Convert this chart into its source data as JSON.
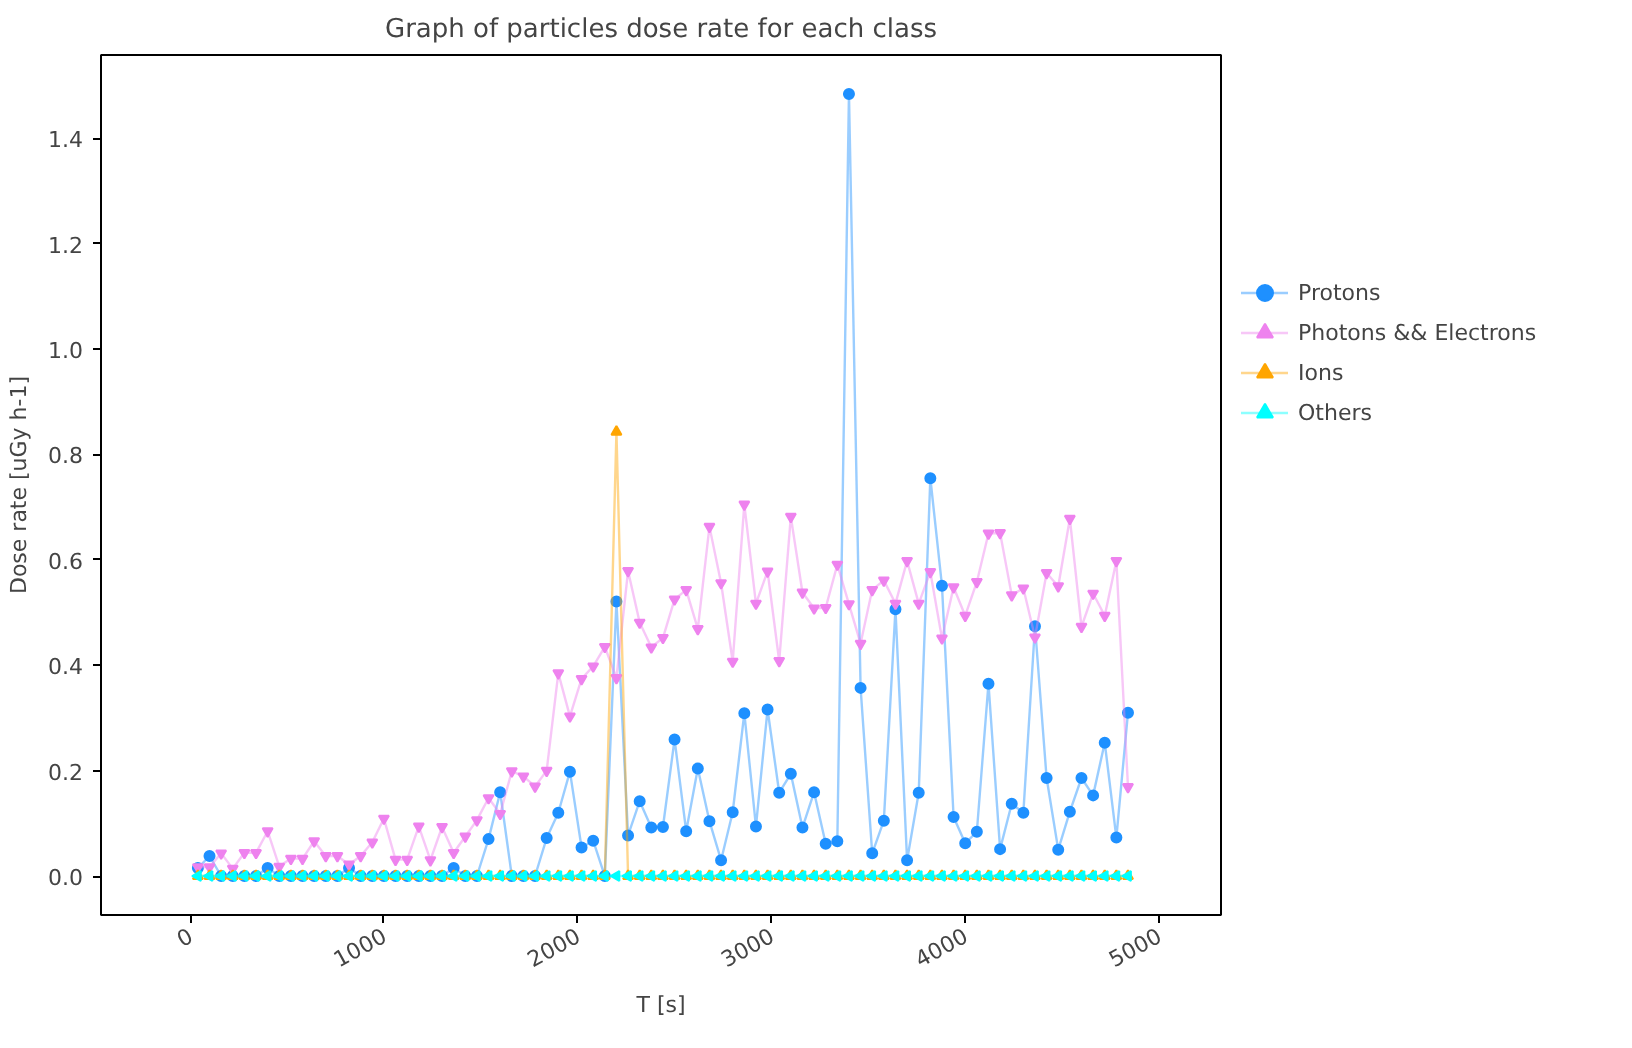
{
  "chart_data": {
    "type": "line",
    "title": "Graph of particles dose rate for each class",
    "xlabel": "T [s]",
    "ylabel": "Dose rate [uGy h-1]",
    "x": [
      40,
      100,
      160,
      220,
      280,
      340,
      400,
      460,
      520,
      580,
      640,
      700,
      760,
      820,
      880,
      940,
      1000,
      1060,
      1120,
      1180,
      1240,
      1300,
      1360,
      1420,
      1480,
      1540,
      1600,
      1660,
      1720,
      1780,
      1840,
      1900,
      1960,
      2020,
      2080,
      2140,
      2200,
      2260,
      2320,
      2380,
      2440,
      2500,
      2560,
      2620,
      2680,
      2740,
      2800,
      2860,
      2920,
      2980,
      3040,
      3100,
      3160,
      3220,
      3280,
      3340,
      3400,
      3460,
      3520,
      3580,
      3640,
      3700,
      3760,
      3820,
      3880,
      3940,
      4000,
      4060,
      4120,
      4180,
      4240,
      4300,
      4360,
      4420,
      4480,
      4540,
      4600,
      4660,
      4720,
      4780,
      4840
    ],
    "series": [
      {
        "name": "Protons",
        "color": "#1e90ff",
        "marker": "circle",
        "values": [
          0.015,
          0.038,
          0,
          0,
          0,
          0,
          0.015,
          0,
          0,
          0,
          0,
          0,
          0,
          0.015,
          0,
          0,
          0,
          0,
          0,
          0,
          0,
          0,
          0.015,
          0,
          0,
          0.07,
          0.159,
          0,
          0,
          0,
          0.072,
          0.12,
          0.198,
          0.054,
          0.067,
          0,
          0.521,
          0.077,
          0.142,
          0.092,
          0.093,
          0.259,
          0.085,
          0.204,
          0.104,
          0.03,
          0.121,
          0.309,
          0.094,
          0.316,
          0.158,
          0.194,
          0.092,
          0.159,
          0.061,
          0.066,
          1.484,
          0.357,
          0.043,
          0.105,
          0.506,
          0.03,
          0.158,
          0.755,
          0.551,
          0.112,
          0.062,
          0.084,
          0.365,
          0.051,
          0.137,
          0.12,
          0.474,
          0.186,
          0.05,
          0.122,
          0.186,
          0.153,
          0.253,
          0.073,
          0.31
        ]
      },
      {
        "name": "Photons && Electrons",
        "color": "#ee82ee",
        "marker": "triangle",
        "values": [
          0.017,
          0.017,
          0.043,
          0.014,
          0.044,
          0.044,
          0.085,
          0.018,
          0.033,
          0.033,
          0.066,
          0.038,
          0.038,
          0.022,
          0.038,
          0.064,
          0.109,
          0.031,
          0.031,
          0.094,
          0.03,
          0.093,
          0.044,
          0.075,
          0.106,
          0.148,
          0.118,
          0.199,
          0.189,
          0.17,
          0.2,
          0.385,
          0.303,
          0.374,
          0.398,
          0.435,
          0.376,
          0.579,
          0.481,
          0.434,
          0.452,
          0.525,
          0.543,
          0.469,
          0.663,
          0.556,
          0.407,
          0.705,
          0.517,
          0.578,
          0.408,
          0.682,
          0.538,
          0.508,
          0.509,
          0.591,
          0.516,
          0.441,
          0.543,
          0.561,
          0.517,
          0.598,
          0.517,
          0.577,
          0.451,
          0.548,
          0.494,
          0.558,
          0.65,
          0.651,
          0.533,
          0.546,
          0.453,
          0.575,
          0.55,
          0.678,
          0.473,
          0.536,
          0.494,
          0.598,
          0.169
        ]
      },
      {
        "name": "Ions",
        "color": "#ffa500",
        "marker": "triangle",
        "values": [
          0,
          0,
          0,
          0,
          0,
          0,
          0,
          0,
          0,
          0,
          0,
          0,
          0,
          0,
          0,
          0,
          0,
          0,
          0,
          0,
          0,
          0,
          0,
          0,
          0,
          0,
          0,
          0,
          0,
          0,
          0,
          0,
          0,
          0,
          0,
          0,
          0.843,
          0,
          0,
          0,
          0,
          0,
          0,
          0,
          0,
          0,
          0,
          0,
          0,
          0,
          0,
          0,
          0,
          0,
          0,
          0,
          0,
          0,
          0,
          0,
          0,
          0,
          0,
          0,
          0,
          0,
          0,
          0,
          0,
          0,
          0,
          0,
          0,
          0,
          0,
          0,
          0,
          0,
          0,
          0,
          0
        ]
      },
      {
        "name": "Others",
        "color": "#00ffff",
        "marker": "triangle",
        "values": [
          0,
          0,
          0,
          0,
          0,
          0,
          0,
          0,
          0,
          0,
          0,
          0,
          0,
          0,
          0,
          0,
          0,
          0,
          0,
          0,
          0,
          0,
          0,
          0,
          0,
          0,
          0,
          0,
          0,
          0,
          0,
          0,
          0,
          0,
          0,
          0,
          0,
          0,
          0,
          0,
          0,
          0,
          0,
          0,
          0,
          0,
          0,
          0,
          0,
          0,
          0,
          0,
          0,
          0,
          0,
          0,
          0,
          0,
          0,
          0,
          0,
          0,
          0,
          0,
          0,
          0,
          0,
          0,
          0,
          0,
          0,
          0,
          0,
          0,
          0,
          0,
          0,
          0,
          0,
          0,
          0
        ]
      }
    ],
    "xlim": [
      -460,
      5320
    ],
    "ylim": [
      -0.074,
      1.558
    ],
    "xticks": [
      0,
      1000,
      2000,
      3000,
      4000,
      5000
    ],
    "yticks": [
      {
        "value": 0,
        "label": "0.0"
      },
      {
        "value": 0.2,
        "label": "0.2"
      },
      {
        "value": 0.4,
        "label": "0.4"
      },
      {
        "value": 0.6,
        "label": "0.6"
      },
      {
        "value": 0.8,
        "label": "0.8"
      },
      {
        "value": 1.0,
        "label": "1.0"
      },
      {
        "value": 1.2,
        "label": "1.2"
      },
      {
        "value": 1.4,
        "label": "1.4"
      }
    ],
    "grid": false,
    "legend": "right",
    "line_style": "solid"
  }
}
